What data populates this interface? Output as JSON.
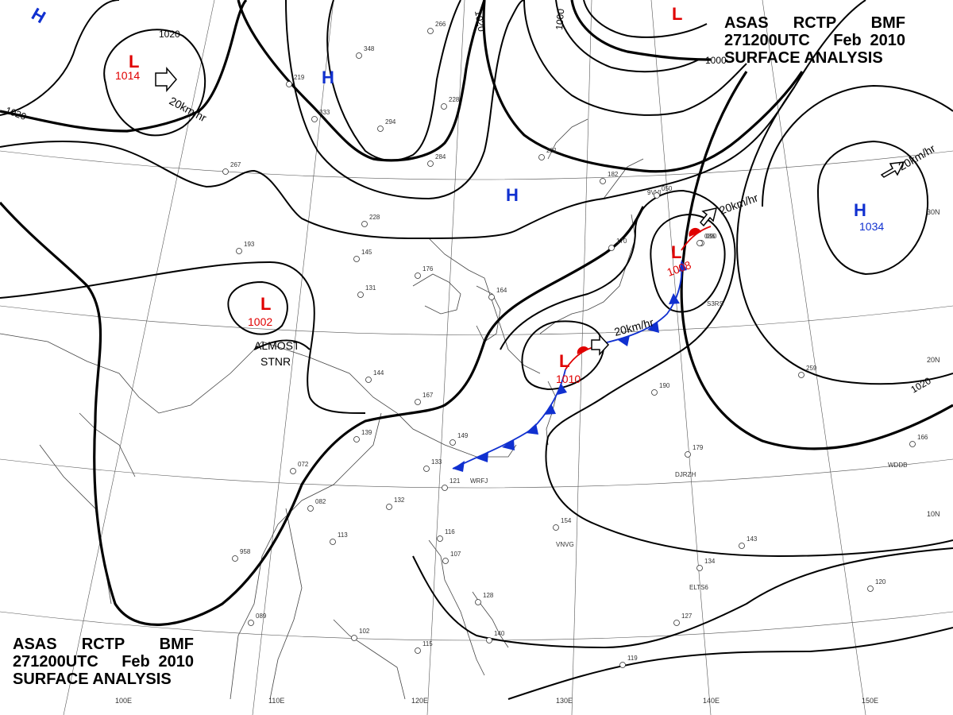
{
  "header": {
    "line1": [
      "ASAS",
      "RCTP",
      "BMF"
    ],
    "line2": [
      "271200UTC",
      "Feb",
      "2010"
    ],
    "line3": "SURFACE ANALYSIS"
  },
  "pressure_centers": [
    {
      "type": "L",
      "value": "1014"
    },
    {
      "type": "L",
      "value": "1002",
      "note_lines": [
        "ALMOST",
        "STNR"
      ]
    },
    {
      "type": "L",
      "value": "1010"
    },
    {
      "type": "L",
      "value": "1008"
    },
    {
      "type": "L",
      "value": ""
    },
    {
      "type": "H",
      "value": "1034"
    },
    {
      "type": "H",
      "value": ""
    },
    {
      "type": "H",
      "value": ""
    },
    {
      "type": "H",
      "value": ""
    }
  ],
  "motion_vectors": [
    "20km/hr",
    "20km/hr",
    "20km/hr",
    "20km/hr"
  ],
  "isobar_labels": [
    "1020",
    "1020",
    "1020",
    "1020",
    "1000",
    "1000"
  ],
  "longitude_labels": [
    "100E",
    "110E",
    "120E",
    "130E",
    "140E",
    "150E"
  ],
  "latitude_labels": [
    "30N",
    "20N",
    "10N"
  ],
  "station_labels": [
    "WRFJ",
    "DJRZH",
    "VNVG",
    "ELTS6",
    "WDDB",
    "9VVI",
    "S3RS"
  ],
  "station_obs": [
    "266",
    "348",
    "219",
    "333",
    "294",
    "228",
    "284",
    "267",
    "201",
    "182",
    "050",
    "145",
    "193",
    "228",
    "176",
    "131",
    "164",
    "090",
    "144",
    "167",
    "139",
    "149",
    "133",
    "121",
    "072",
    "082",
    "132",
    "113",
    "958",
    "089",
    "102",
    "115",
    "116",
    "107",
    "128",
    "140",
    "154",
    "190",
    "179",
    "259",
    "166",
    "143",
    "134",
    "120",
    "127",
    "119",
    "170",
    "086"
  ]
}
